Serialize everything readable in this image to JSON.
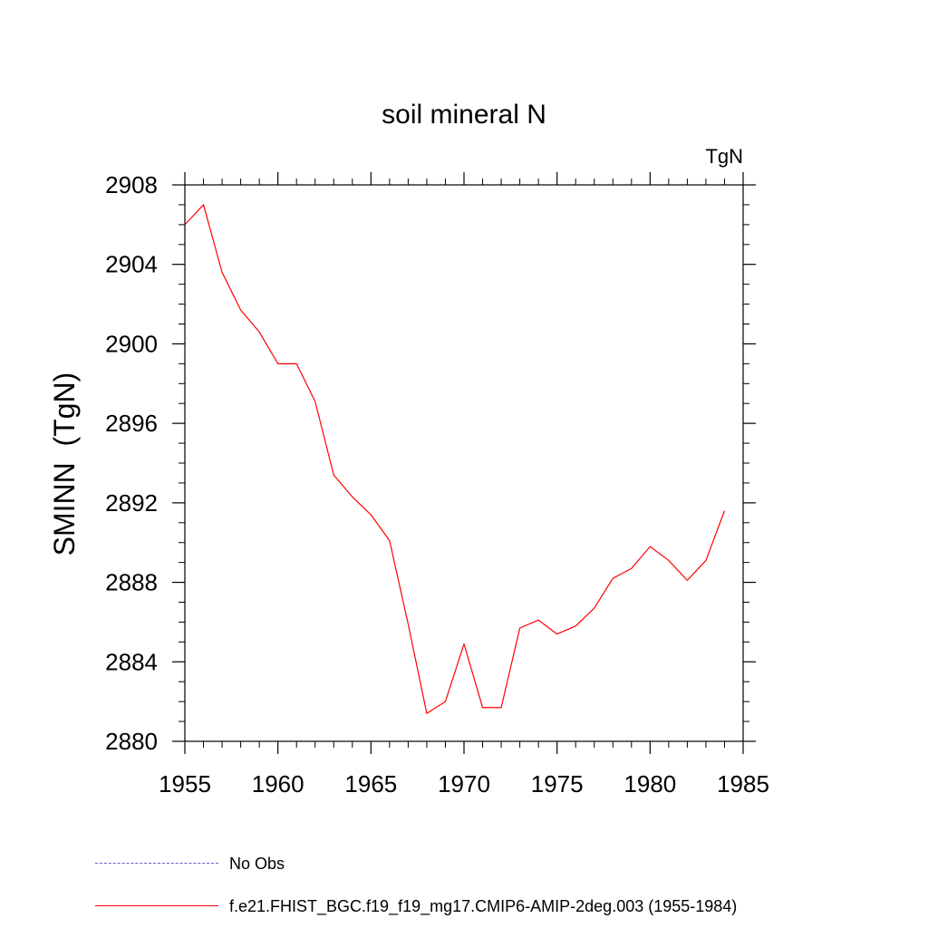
{
  "chart_data": {
    "type": "line",
    "title": "soil mineral N",
    "units_label": "TgN",
    "ylabel": "SMINN  (TgN)",
    "xlabel": "",
    "xlim": [
      1955,
      1985
    ],
    "ylim": [
      2880,
      2908
    ],
    "x_ticks": [
      1955,
      1960,
      1965,
      1970,
      1975,
      1980,
      1985
    ],
    "y_ticks": [
      2880,
      2884,
      2888,
      2892,
      2896,
      2900,
      2904,
      2908
    ],
    "grid": false,
    "legend_placement": "bottom",
    "series": [
      {
        "name": "f.e21.FHIST_BGC.f19_f19_mg17.CMIP6-AMIP-2deg.003 (1955-1984)",
        "color": "#ff0000",
        "style": "solid",
        "x": [
          1955,
          1956,
          1957,
          1958,
          1959,
          1960,
          1961,
          1962,
          1963,
          1964,
          1965,
          1966,
          1967,
          1968,
          1969,
          1970,
          1971,
          1972,
          1973,
          1974,
          1975,
          1976,
          1977,
          1978,
          1979,
          1980,
          1981,
          1982,
          1983,
          1984
        ],
        "y": [
          2906.0,
          2907.0,
          2903.6,
          2901.7,
          2900.6,
          2899.0,
          2899.0,
          2897.1,
          2893.4,
          2892.3,
          2891.4,
          2890.1,
          2885.9,
          2881.4,
          2882.0,
          2884.9,
          2881.7,
          2881.7,
          2885.7,
          2886.1,
          2885.4,
          2885.8,
          2886.7,
          2888.2,
          2888.7,
          2889.8,
          2889.1,
          2888.1,
          2889.1,
          2891.6
        ]
      }
    ],
    "legend": [
      {
        "label": "No Obs",
        "color": "#6a5acd",
        "style": "dashed"
      },
      {
        "label": "f.e21.FHIST_BGC.f19_f19_mg17.CMIP6-AMIP-2deg.003 (1955-1984)",
        "color": "#ff0000",
        "style": "solid"
      }
    ]
  }
}
